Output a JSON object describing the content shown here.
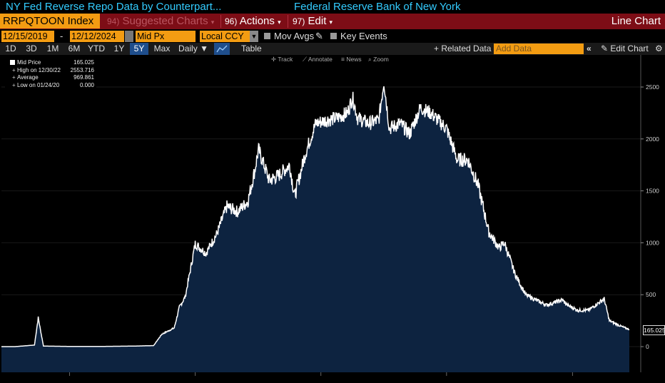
{
  "header": {
    "title": "NY Fed Reverse Repo Data by Counterpart...",
    "source": "Federal Reserve Bank of New York"
  },
  "menu": {
    "ticker": "RRPQTOON Index",
    "suggested_num": "94)",
    "suggested_label": "Suggested Charts",
    "actions_num": "96)",
    "actions_label": "Actions",
    "edit_num": "97)",
    "edit_label": "Edit",
    "chart_type": "Line Chart"
  },
  "controls": {
    "start_date": "12/15/2019",
    "date_sep": "-",
    "end_date": "12/12/2024",
    "price_field": "Mid Px",
    "currency": "Local CCY",
    "mov_avgs": "Mov Avgs",
    "key_events": "Key Events"
  },
  "range": {
    "buttons": [
      "1D",
      "3D",
      "1M",
      "6M",
      "YTD",
      "1Y",
      "5Y",
      "Max"
    ],
    "active": "5Y",
    "frequency": "Daily",
    "table": "Table",
    "related": "+ Related Data",
    "add_data_placeholder": "Add Data",
    "edit_chart": "Edit Chart"
  },
  "tools": {
    "track": "Track",
    "annotate": "Annotate",
    "news": "News",
    "zoom": "Zoom"
  },
  "legend": {
    "series": "Mid Price",
    "series_value": "165.025",
    "high_label": "High on 12/30/22",
    "high_value": "2553.716",
    "average_label": "Average",
    "average_value": "969.861",
    "low_label": "Low on 01/24/20",
    "low_value": "0.000"
  },
  "colors": {
    "background": "#000000",
    "fill": "#0d2340",
    "line": "#ffffff",
    "title": "#33ccff",
    "accent": "#f39c12",
    "menubar": "#7d0d16"
  },
  "chart_data": {
    "type": "area",
    "ylim": [
      -250,
      2700
    ],
    "yticks": [
      0,
      500,
      1000,
      1500,
      2000,
      2500
    ],
    "last_value": "165.025",
    "series": [
      {
        "values": [
          [
            "2019-12-15",
            0
          ],
          [
            "2020-01-24",
            0
          ],
          [
            "2020-03-20",
            15
          ],
          [
            "2020-03-31",
            280
          ],
          [
            "2020-04-15",
            5
          ],
          [
            "2020-07-01",
            2
          ],
          [
            "2020-10-01",
            2
          ],
          [
            "2021-01-01",
            5
          ],
          [
            "2021-03-01",
            10
          ],
          [
            "2021-03-25",
            120
          ],
          [
            "2021-04-30",
            180
          ],
          [
            "2021-05-15",
            380
          ],
          [
            "2021-06-01",
            480
          ],
          [
            "2021-06-17",
            760
          ],
          [
            "2021-06-30",
            990
          ],
          [
            "2021-07-31",
            900
          ],
          [
            "2021-08-31",
            1080
          ],
          [
            "2021-09-30",
            1350
          ],
          [
            "2021-10-31",
            1300
          ],
          [
            "2021-11-30",
            1400
          ],
          [
            "2021-12-20",
            1700
          ],
          [
            "2021-12-31",
            1900
          ],
          [
            "2022-01-31",
            1600
          ],
          [
            "2022-02-28",
            1650
          ],
          [
            "2022-03-31",
            1750
          ],
          [
            "2022-04-15",
            1450
          ],
          [
            "2022-05-15",
            1850
          ],
          [
            "2022-06-15",
            2150
          ],
          [
            "2022-07-15",
            2180
          ],
          [
            "2022-08-15",
            2200
          ],
          [
            "2022-09-15",
            2250
          ],
          [
            "2022-09-30",
            2400
          ],
          [
            "2022-10-15",
            2200
          ],
          [
            "2022-11-15",
            2150
          ],
          [
            "2022-12-15",
            2180
          ],
          [
            "2022-12-30",
            2553.716
          ],
          [
            "2023-01-15",
            2100
          ],
          [
            "2023-02-15",
            2150
          ],
          [
            "2023-03-15",
            2050
          ],
          [
            "2023-04-15",
            2300
          ],
          [
            "2023-05-15",
            2250
          ],
          [
            "2023-06-30",
            2100
          ],
          [
            "2023-07-31",
            1800
          ],
          [
            "2023-08-31",
            1800
          ],
          [
            "2023-09-30",
            1550
          ],
          [
            "2023-10-31",
            1100
          ],
          [
            "2023-11-30",
            950
          ],
          [
            "2023-12-15",
            1000
          ],
          [
            "2024-01-15",
            700
          ],
          [
            "2024-02-15",
            500
          ],
          [
            "2024-03-15",
            450
          ],
          [
            "2024-04-15",
            400
          ],
          [
            "2024-05-31",
            450
          ],
          [
            "2024-06-15",
            400
          ],
          [
            "2024-07-15",
            350
          ],
          [
            "2024-08-15",
            350
          ],
          [
            "2024-09-30",
            460
          ],
          [
            "2024-10-15",
            250
          ],
          [
            "2024-11-15",
            200
          ],
          [
            "2024-12-12",
            165.025
          ]
        ]
      }
    ]
  }
}
